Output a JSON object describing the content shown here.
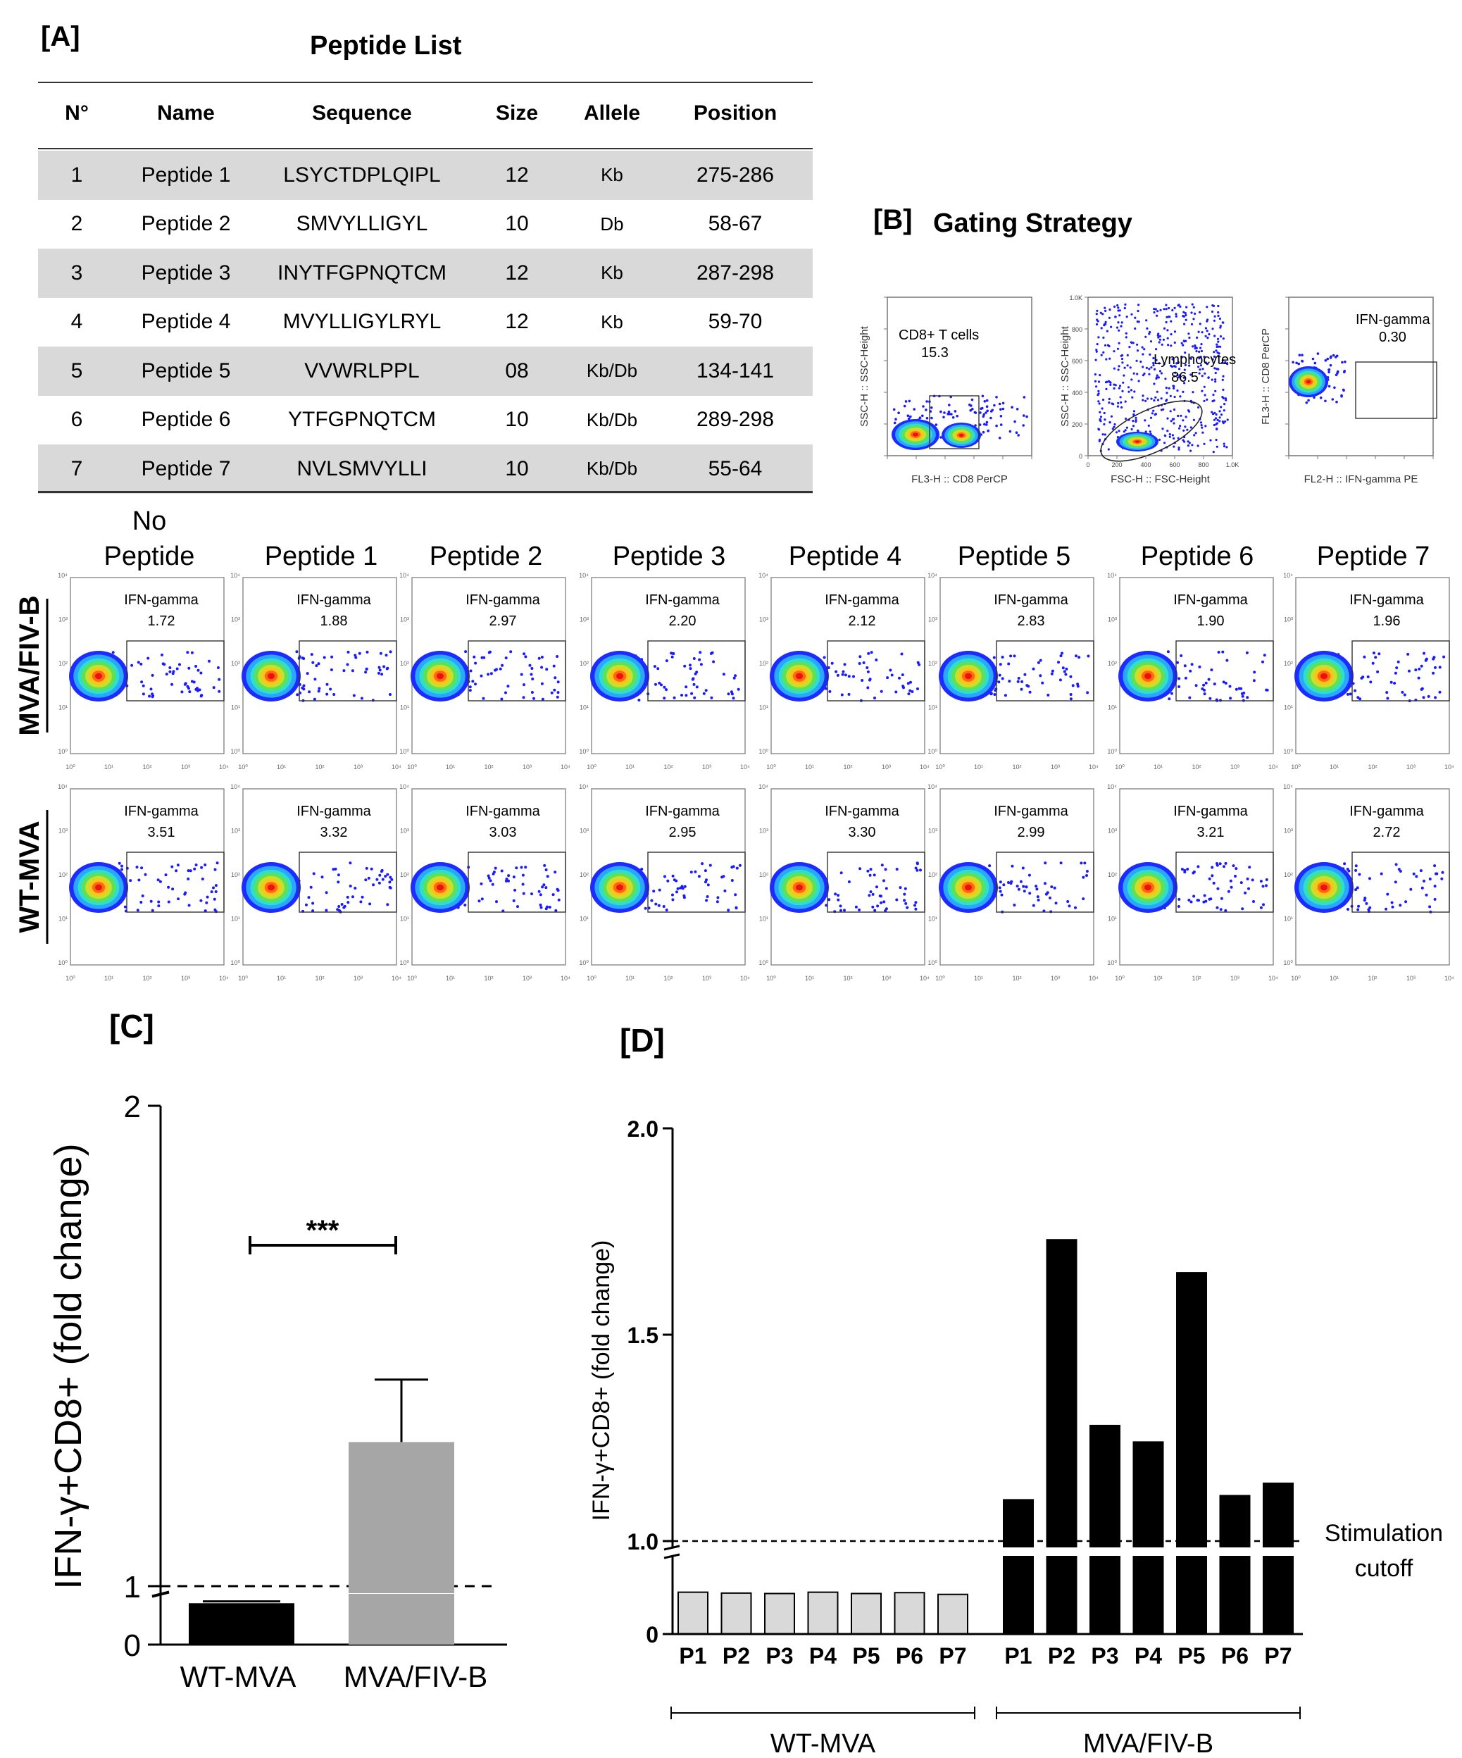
{
  "panel_a": {
    "label": "[A]",
    "title": "Peptide List",
    "headers": [
      "N°",
      "Name",
      "Sequence",
      "Size",
      "Allele",
      "Position"
    ],
    "rows": [
      {
        "n": "1",
        "name": "Peptide 1",
        "sequence": "LSYCTDPLQIPL",
        "size": "12",
        "allele": "Kb",
        "position": "275-286"
      },
      {
        "n": "2",
        "name": "Peptide 2",
        "sequence": "SMVYLLIGYL",
        "size": "10",
        "allele": "Db",
        "position": "58-67"
      },
      {
        "n": "3",
        "name": "Peptide 3",
        "sequence": "INYTFGPNQTCM",
        "size": "12",
        "allele": "Kb",
        "position": "287-298"
      },
      {
        "n": "4",
        "name": "Peptide 4",
        "sequence": "MVYLLIGYLRYL",
        "size": "12",
        "allele": "Kb",
        "position": "59-70"
      },
      {
        "n": "5",
        "name": "Peptide 5",
        "sequence": "VVWRLPPL",
        "size": "08",
        "allele": "Kb/Db",
        "position": "134-141"
      },
      {
        "n": "6",
        "name": "Peptide 6",
        "sequence": "YTFGPNQTCM",
        "size": "10",
        "allele": "Kb/Db",
        "position": "289-298"
      },
      {
        "n": "7",
        "name": "Peptide 7",
        "sequence": "NVLSMVYLLI",
        "size": "10",
        "allele": "Kb/Db",
        "position": "55-64"
      }
    ]
  },
  "panel_b": {
    "label": "[B]",
    "title": "Gating Strategy",
    "plots": [
      {
        "gate_name": "CD8+ T cells",
        "gate_value": "15.3",
        "y_axis": "SSC-H :: SSC-Height",
        "x_axis": "FL3-H :: CD8 PerCP"
      },
      {
        "gate_name": "Lymphocytes",
        "gate_value": "86.5",
        "y_axis": "SSC-H :: SSC-Height",
        "x_axis": "FSC-H :: FSC-Height"
      },
      {
        "gate_name": "IFN-gamma",
        "gate_value": "0.30",
        "y_axis": "FL3-H :: CD8 PerCP",
        "x_axis": "FL2-H :: IFN-gamma PE"
      }
    ],
    "y_ticks_linear": [
      "1.0K",
      "800",
      "600",
      "400",
      "200",
      "0"
    ],
    "x_ticks_linear": [
      "0",
      "200",
      "400",
      "600",
      "800",
      "1.0K"
    ]
  },
  "facs_grid": {
    "columns": [
      "No Peptide",
      "Peptide 1",
      "Peptide 2",
      "Peptide 3",
      "Peptide 4",
      "Peptide 5",
      "Peptide 6",
      "Peptide 7"
    ],
    "rows": [
      {
        "label": "MVA/FIV-B",
        "gate_name": "IFN-gamma",
        "values": [
          "1.72",
          "1.88",
          "2.97",
          "2.20",
          "2.12",
          "2.83",
          "1.90",
          "1.96"
        ]
      },
      {
        "label": "WT-MVA",
        "gate_name": "IFN-gamma",
        "values": [
          "3.51",
          "3.32",
          "3.03",
          "2.95",
          "3.30",
          "2.99",
          "3.21",
          "2.72"
        ]
      }
    ]
  },
  "chart_data": [
    {
      "panel": "[C]",
      "type": "bar",
      "categories": [
        "WT-MVA",
        "MVA/FIV-B"
      ],
      "values": [
        0.93,
        1.3
      ],
      "error_upper": [
        0.94,
        1.43
      ],
      "colors": [
        "#000000",
        "#a6a6a6"
      ],
      "ylabel": "IFN-γ+CD8+ (fold change)",
      "yticks": [
        "0",
        "1",
        "2"
      ],
      "axis_break": true,
      "reference_line": 1.0,
      "significance": "***"
    },
    {
      "panel": "[D]",
      "type": "bar",
      "groups": [
        {
          "name": "WT-MVA",
          "categories": [
            "P1",
            "P2",
            "P3",
            "P4",
            "P5",
            "P6",
            "P7"
          ],
          "values": [
            0.96,
            0.94,
            0.93,
            0.96,
            0.93,
            0.95,
            0.91
          ],
          "color": "#d9d9d9"
        },
        {
          "name": "MVA/FIV-B",
          "categories": [
            "P1",
            "P2",
            "P3",
            "P4",
            "P5",
            "P6",
            "P7"
          ],
          "values": [
            1.1,
            1.73,
            1.28,
            1.24,
            1.65,
            1.11,
            1.14
          ],
          "color": "#000000"
        }
      ],
      "ylabel": "IFN-γ+CD8+ (fold change)",
      "yticks": [
        "0",
        "1.0",
        "1.5",
        "2.0"
      ],
      "axis_break": true,
      "reference_line": 1.0,
      "reference_label": [
        "Stimulation",
        "cutoff"
      ]
    }
  ]
}
